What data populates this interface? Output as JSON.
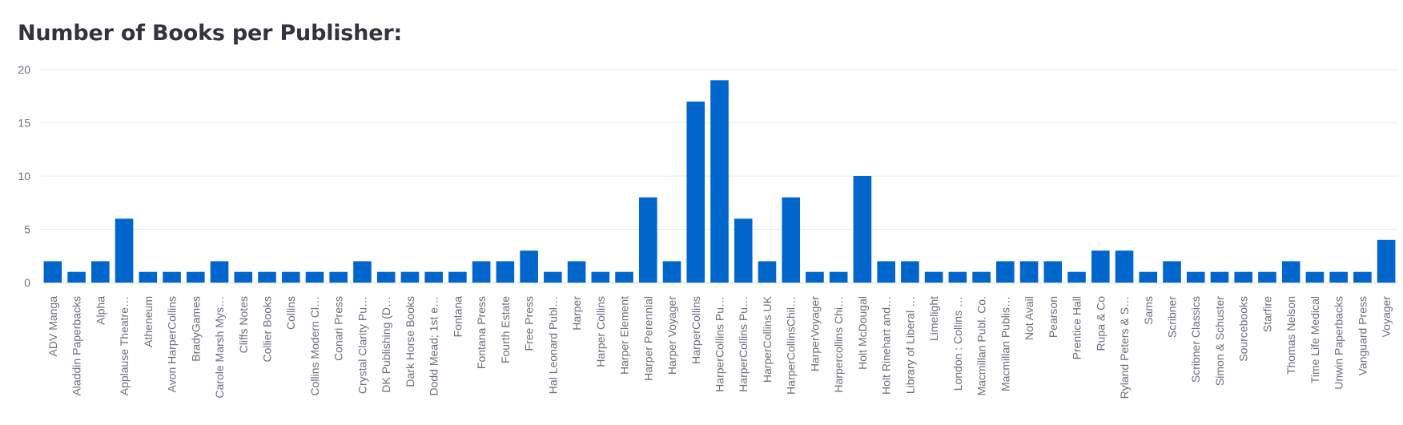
{
  "header": {
    "title": "Number of Books per Publisher:"
  },
  "chart_data": {
    "type": "bar",
    "title": "Number of Books per Publisher:",
    "xlabel": "",
    "ylabel": "",
    "ylim": [
      0,
      20
    ],
    "yticks": [
      0,
      5,
      10,
      15,
      20
    ],
    "grid": true,
    "bar_color": "#0066cc",
    "categories": [
      "ADV Manga",
      "Aladdin Paperbacks",
      "Alpha",
      "Applause Theatre…",
      "Atheneum",
      "Avon HarperCollins",
      "BradyGames",
      "Carole Marsh Mys…",
      "Cliffs Notes",
      "Collier Books",
      "Collins",
      "Collins Modern Cl…",
      "Conari Press",
      "Crystal Clarity Pu…",
      "DK Publishing (D…",
      "Dark Horse Books",
      "Dodd Mead; 1st e…",
      "Fontana",
      "Fontana Press",
      "Fourth Estate",
      "Free Press",
      "Hal Leonard Publ…",
      "Harper",
      "Harper Collins",
      "Harper Element",
      "Harper Perennial",
      "Harper Voyager",
      "HarperCollins",
      "HarperCollins Pu…",
      "HarperCollins Pu…",
      "HarperCollins UK",
      "HarperCollinsChil…",
      "HarperVoyager",
      "Harpercollins Chi…",
      "Holt McDougal",
      "Holt Rinehart and…",
      "Library of Liberal …",
      "Limelight",
      "London : Collins …",
      "Macmillan Publ. Co.",
      "Macmillan Publis…",
      "Not Avail",
      "Pearson",
      "Prentice Hall",
      "Rupa & Co",
      "Ryland Peters & S…",
      "Sams",
      "Scribner",
      "Scribner Classics",
      "Simon & Schuster",
      "Sourcebooks",
      "Starfire",
      "Thomas Nelson",
      "Time Life Medical",
      "Unwin Paperbacks",
      "Vanguard Press",
      "Voyager"
    ],
    "values": [
      2,
      1,
      2,
      6,
      1,
      1,
      1,
      2,
      1,
      1,
      1,
      1,
      1,
      2,
      1,
      1,
      1,
      1,
      2,
      2,
      3,
      1,
      2,
      1,
      1,
      8,
      2,
      17,
      19,
      6,
      2,
      8,
      1,
      1,
      10,
      2,
      2,
      1,
      1,
      1,
      2,
      2,
      2,
      1,
      3,
      3,
      1,
      2,
      1,
      1,
      1,
      1,
      2,
      1,
      1,
      1,
      4
    ]
  }
}
